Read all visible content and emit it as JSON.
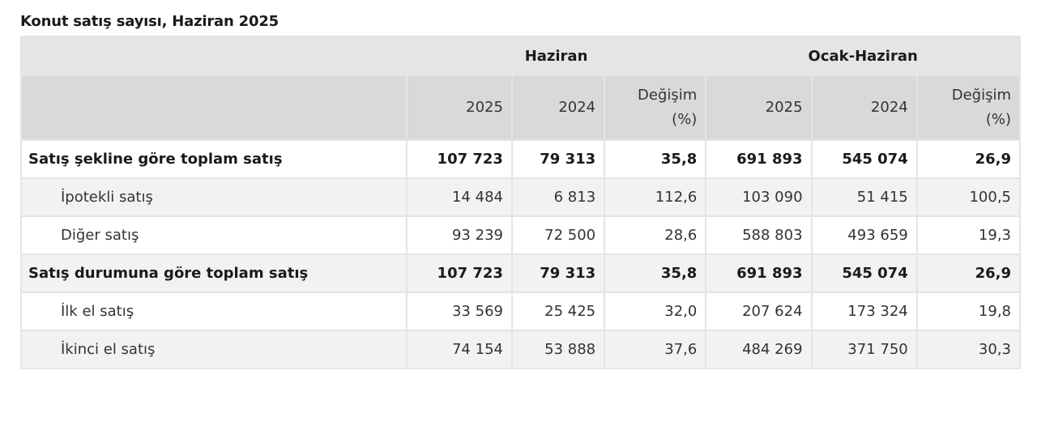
{
  "title": "Konut satış sayısı, Haziran 2025",
  "header": {
    "groups": [
      "Haziran",
      "Ocak-Haziran"
    ],
    "columns": [
      "2025",
      "2024",
      "Değişim",
      "(%)",
      "2025",
      "2024",
      "Değişim",
      "(%)"
    ]
  },
  "rows": [
    {
      "label": "Satış şekline göre toplam satış",
      "type": "total",
      "values": [
        "107 723",
        "79 313",
        "35,8",
        "691 893",
        "545 074",
        "26,9"
      ]
    },
    {
      "label": "İpotekli satış",
      "type": "sub",
      "values": [
        "14 484",
        "6 813",
        "112,6",
        "103 090",
        "51 415",
        "100,5"
      ]
    },
    {
      "label": "Diğer satış",
      "type": "sub",
      "values": [
        "93 239",
        "72 500",
        "28,6",
        "588 803",
        "493 659",
        "19,3"
      ]
    },
    {
      "label": "Satış durumuna göre toplam satış",
      "type": "total",
      "values": [
        "107 723",
        "79 313",
        "35,8",
        "691 893",
        "545 074",
        "26,9"
      ]
    },
    {
      "label": "İlk el satış",
      "type": "sub",
      "values": [
        "33 569",
        "25 425",
        "32,0",
        "207 624",
        "173 324",
        "19,8"
      ]
    },
    {
      "label": "İkinci el satış",
      "type": "sub",
      "values": [
        "74 154",
        "53 888",
        "37,6",
        "484 269",
        "371 750",
        "30,3"
      ]
    }
  ]
}
